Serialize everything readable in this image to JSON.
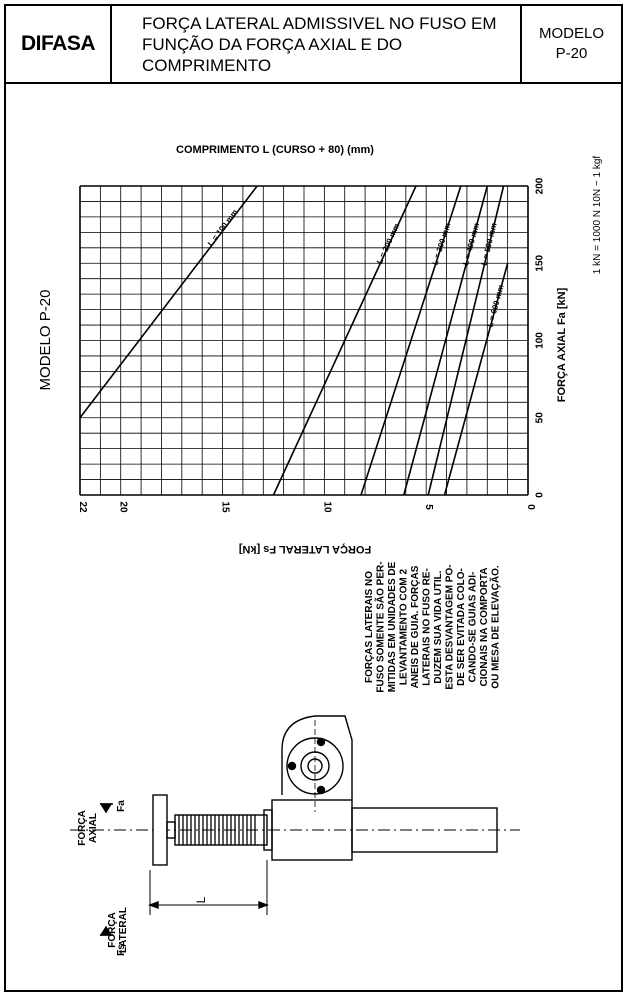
{
  "header": {
    "brand": "DIFASA",
    "title_line1": "FORÇA LATERAL ADMISSIVEL NO FUSO EM",
    "title_line2": "FUNÇÃO DA FORÇA AXIAL E DO COMPRIMENTO",
    "model_label": "MODELO",
    "model_value": "P-20"
  },
  "side_label": "MODELO P-20",
  "notes": {
    "units": "1 kN = 1000 N   10N ~ 1 kgf",
    "text_lines": [
      "FORÇAS LATERAIS NO",
      "FUSO SOMENTE SÃO PER-",
      "MITIDAS EM UNIDADES DE",
      "LEVANTAMENTO COM 2",
      "ANEIS DE GUIA. FORÇAS",
      "LATERAIS NO FUSO RE-",
      "DUZEM SUA VIDA UTIL.",
      "ESTA DESVANTAGEM PO-",
      "DE SER EVITADA COLO-",
      "CANDO-SE GUIAS ADI-",
      "CIONAIS NA COMPORTA",
      "OU MESA DE ELEVAÇÃO."
    ]
  },
  "drawing": {
    "axial_force_label": [
      "FORÇA",
      "AXIAL"
    ],
    "axial_force_symbol": "Fa",
    "lateral_force_label": [
      "FORÇA",
      "LATERAL"
    ],
    "lateral_force_symbol": "Fs",
    "length_symbol": "L"
  },
  "chart_data": {
    "type": "line",
    "title": "COMPRIMENTO L (CURSO + 80) (mm)",
    "xlabel": "FORÇA LATERAL Fs [kN]",
    "ylabel": "FORÇA AXIAL Fa [kN]",
    "x_reversed": true,
    "xlim": [
      0,
      22
    ],
    "ylim": [
      0,
      200
    ],
    "x_ticks": [
      0,
      5,
      10,
      15,
      20,
      22
    ],
    "y_ticks": [
      0,
      50,
      100,
      150,
      200
    ],
    "grid": true,
    "series": [
      {
        "name": "L = 100 mm",
        "points": [
          [
            22,
            50
          ],
          [
            13.3,
            200
          ]
        ]
      },
      {
        "name": "L = 200 mm",
        "points": [
          [
            12.5,
            0
          ],
          [
            5.5,
            200
          ]
        ]
      },
      {
        "name": "L = 300 mm",
        "points": [
          [
            8.2,
            0
          ],
          [
            3.3,
            200
          ]
        ]
      },
      {
        "name": "L = 400 mm",
        "points": [
          [
            6.1,
            0
          ],
          [
            2.0,
            200
          ]
        ]
      },
      {
        "name": "L = 500 mm",
        "points": [
          [
            4.9,
            0
          ],
          [
            1.2,
            200
          ]
        ]
      },
      {
        "name": "L = 600 mm",
        "points": [
          [
            4.1,
            0
          ],
          [
            1.0,
            150
          ]
        ]
      }
    ]
  }
}
